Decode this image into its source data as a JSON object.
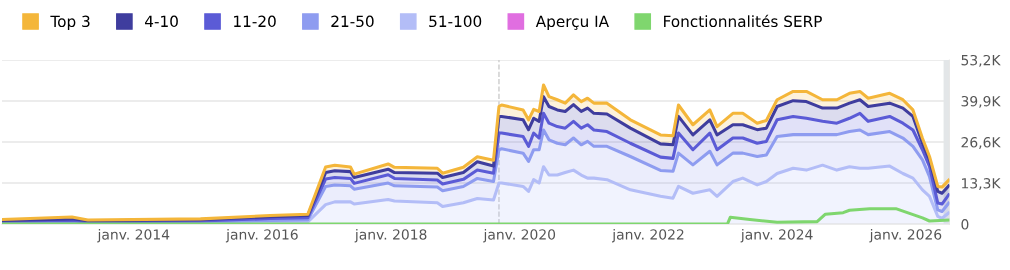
{
  "chart_data": {
    "type": "area",
    "stacked": true,
    "x": [
      "2011-12-15",
      "2013-01-15",
      "2013-04-15",
      "2015-01-15",
      "2016-02-15",
      "2016-09-15",
      "2016-12-25",
      "2017-02-15",
      "2017-05-15",
      "2017-06-05",
      "2017-12-15",
      "2018-01-20",
      "2018-09-20",
      "2018-10-20",
      "2019-02-15",
      "2019-05-05",
      "2019-08-05",
      "2019-09-05",
      "2019-09-20",
      "2020-01-20",
      "2020-02-20",
      "2020-03-20",
      "2020-04-20",
      "2020-05-15",
      "2020-06-15",
      "2020-08-01",
      "2020-09-15",
      "2020-11-01",
      "2020-12-15",
      "2021-01-20",
      "2021-02-25",
      "2021-05-10",
      "2021-09-20",
      "2022-03-10",
      "2022-05-20",
      "2022-06-20",
      "2022-09-10",
      "2022-12-15",
      "2023-01-25",
      "2023-04-25",
      "2023-06-20",
      "2023-09-10",
      "2023-11-01",
      "2024-01-01",
      "2024-04-01",
      "2024-06-15",
      "2024-09-15",
      "2024-12-05",
      "2025-02-15",
      "2025-04-15",
      "2025-06-01",
      "2025-10-01",
      "2025-12-15",
      "2026-02-10",
      "2026-04-05",
      "2026-05-15",
      "2026-07-01",
      "2026-07-25",
      "2026-09-01"
    ],
    "series": [
      {
        "name": "51-100",
        "color": "#b3bdf7",
        "values": [
          400,
          500,
          300,
          300,
          600,
          700,
          6300,
          7200,
          7200,
          6500,
          8000,
          7500,
          6900,
          5700,
          6900,
          8300,
          7800,
          13300,
          13300,
          12200,
          10600,
          14400,
          13300,
          18600,
          15900,
          15900,
          16700,
          17500,
          15900,
          14900,
          14900,
          14400,
          11100,
          9000,
          8400,
          12200,
          10000,
          11100,
          9000,
          13800,
          14900,
          12700,
          13800,
          16400,
          18100,
          17500,
          19100,
          17500,
          18600,
          18100,
          18100,
          18800,
          16400,
          14900,
          11100,
          9000,
          2500,
          1900,
          3600
        ]
      },
      {
        "name": "21-50",
        "color": "#8e9cf0",
        "values": [
          200,
          300,
          200,
          300,
          600,
          700,
          5900,
          5500,
          5200,
          4800,
          5300,
          4900,
          5100,
          5100,
          5300,
          6500,
          6000,
          10800,
          11100,
          10800,
          9700,
          9700,
          10800,
          11900,
          11400,
          10300,
          9000,
          10400,
          9800,
          11900,
          10300,
          10800,
          10800,
          8400,
          8700,
          10800,
          9200,
          12500,
          10200,
          9200,
          8100,
          9200,
          8600,
          12000,
          10900,
          11500,
          9900,
          11500,
          11400,
          12400,
          10900,
          11200,
          11500,
          10300,
          9700,
          6400,
          2100,
          2200,
          3200
        ]
      },
      {
        "name": "11-20",
        "color": "#5b5bd6",
        "values": [
          300,
          400,
          300,
          400,
          600,
          700,
          2400,
          2400,
          2400,
          1900,
          2700,
          2400,
          2300,
          2200,
          2300,
          2700,
          2700,
          5400,
          5100,
          5400,
          4900,
          5400,
          3800,
          5400,
          5400,
          5400,
          5400,
          5400,
          5400,
          5400,
          5300,
          4800,
          4300,
          4300,
          4200,
          6500,
          4900,
          5900,
          4900,
          4900,
          4900,
          4300,
          4400,
          5400,
          5900,
          5300,
          4300,
          3700,
          4300,
          5400,
          4300,
          4900,
          4800,
          5300,
          3300,
          3300,
          2200,
          2400,
          2700
        ]
      },
      {
        "name": "4-10",
        "color": "#3f3d9e",
        "values": [
          300,
          500,
          300,
          400,
          600,
          700,
          2100,
          2200,
          2200,
          1900,
          1800,
          1900,
          2200,
          2100,
          2200,
          2700,
          2300,
          5400,
          5400,
          5400,
          5400,
          4800,
          5400,
          5400,
          5400,
          5400,
          5400,
          5400,
          5400,
          5400,
          5400,
          5700,
          4900,
          4300,
          4400,
          5400,
          4800,
          4300,
          4800,
          4300,
          4300,
          4400,
          4300,
          4300,
          5100,
          5400,
          4300,
          4900,
          4900,
          4400,
          4800,
          4300,
          4900,
          4400,
          2100,
          2100,
          3800,
          3500,
          2900
        ]
      },
      {
        "name": "Top 3",
        "color": "#f4b63a",
        "values": [
          300,
          600,
          200,
          300,
          400,
          400,
          1800,
          1800,
          1500,
          1100,
          1700,
          1700,
          1600,
          1400,
          1700,
          1600,
          1900,
          3200,
          3700,
          3200,
          3200,
          2900,
          3200,
          3800,
          3200,
          3300,
          2700,
          3200,
          3200,
          3200,
          3300,
          3500,
          2700,
          2900,
          2900,
          3700,
          3300,
          3200,
          2700,
          3700,
          3700,
          2100,
          2500,
          2200,
          3000,
          3300,
          2700,
          2700,
          3200,
          2700,
          2700,
          3200,
          2700,
          2100,
          1600,
          1100,
          1600,
          2000,
          1800
        ]
      },
      {
        "name": "Aperçu IA",
        "color": "#e06ee0",
        "values": [
          null,
          null,
          null,
          null,
          null,
          null,
          null,
          null,
          null,
          null,
          null,
          null,
          null,
          null,
          null,
          null,
          null,
          null,
          null,
          null,
          null,
          null,
          null,
          null,
          null,
          null,
          null,
          null,
          null,
          null,
          null,
          null,
          null,
          null,
          null,
          null,
          null,
          null,
          null,
          null,
          null,
          null,
          null,
          null,
          null,
          null,
          null,
          null,
          null,
          null,
          null,
          null,
          null,
          null,
          null,
          null,
          null,
          null,
          null
        ]
      },
      {
        "name": "Fonctionnalités SERP",
        "type": "line",
        "color": "#7fd66e",
        "x": [
          "2011-12-15",
          "2023-03-25",
          "2023-04-10",
          "2023-07-30",
          "2024-01-01",
          "2024-08-15",
          "2024-10-01",
          "2025-01-10",
          "2025-02-15",
          "2025-06-10",
          "2025-11-05",
          "2026-04-05",
          "2026-05-15",
          "2026-09-01"
        ],
        "values": [
          0,
          0,
          2200,
          1500,
          600,
          800,
          3200,
          3700,
          4500,
          5000,
          5000,
          2000,
          1000,
          1300
        ]
      }
    ],
    "xlim": [
      "2011-12-15",
      "2026-09-05"
    ],
    "xticks": [
      {
        "value": "2014-01-01",
        "label": "janv. 2014"
      },
      {
        "value": "2016-01-01",
        "label": "janv. 2016"
      },
      {
        "value": "2018-01-01",
        "label": "janv. 2018"
      },
      {
        "value": "2020-01-01",
        "label": "janv. 2020"
      },
      {
        "value": "2022-01-01",
        "label": "janv. 2022"
      },
      {
        "value": "2024-01-01",
        "label": "janv. 2024"
      },
      {
        "value": "2026-01-01",
        "label": "janv. 2026"
      }
    ],
    "ylim": [
      0,
      53200
    ],
    "yticks": [
      {
        "value": 0,
        "label": "0"
      },
      {
        "value": 13300,
        "label": "13,3K"
      },
      {
        "value": 26600,
        "label": "26,6K"
      },
      {
        "value": 39900,
        "label": "39,9K"
      },
      {
        "value": 53200,
        "label": "53,2K"
      }
    ],
    "grid": "y",
    "legend": "top left",
    "ref_lines": [
      {
        "axis": "x",
        "value": "2019-09-05",
        "color": "#cccccc",
        "line_style": "dashed"
      }
    ],
    "bands": [
      {
        "axis": "x",
        "from": "2026-08-03",
        "to": "2026-09-05",
        "color": "#e3e6e8"
      }
    ]
  }
}
